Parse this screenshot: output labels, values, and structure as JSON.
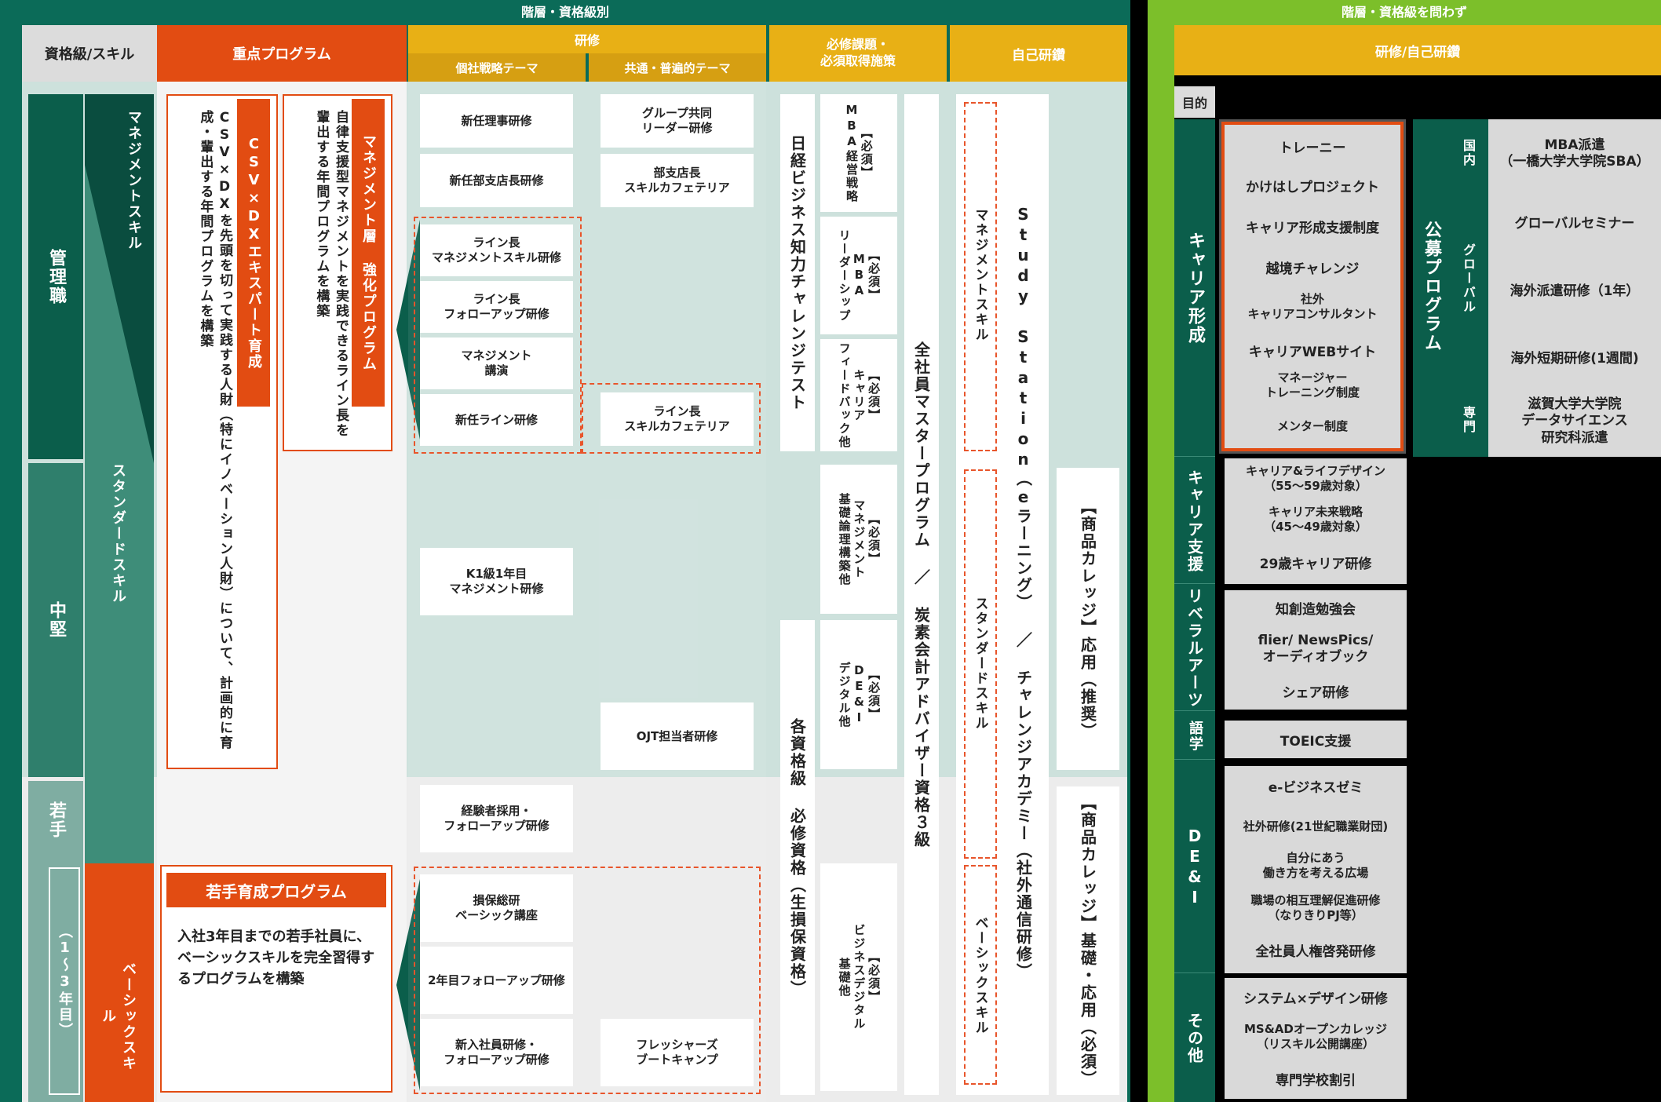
{
  "left_panel": {
    "banner": "階層・資格級別",
    "headers": {
      "level_skill": "資格級/スキル",
      "priority": "重点プログラム",
      "training": "研修",
      "individual_theme": "個社戦略テーマ",
      "common_theme": "共通・普遍的テーマ",
      "mandatory": "必修課題・\n必須取得施策",
      "self_study": "自己研鑽"
    },
    "levels": {
      "manager": "管理職",
      "mid": "中堅",
      "young": "若手",
      "young_sub": "（1〜3年目）"
    },
    "skills": {
      "management": "マネジメントスキル",
      "standard": "スタンダードスキル",
      "basic": "ベーシックスキル"
    },
    "priority_programs": {
      "mgmt_title": "マネジメント層 強化プログラム",
      "mgmt_desc": "自律支援型マネジメントを実践できるライン長を輩出する年間プログラムを構築",
      "csv_title": "CSV×DXエキスパート育成",
      "csv_desc": "CSV×DXを先頭を切って実践する人財（特にイノベーション人財）について、計画的に育成・輩出する年間プログラムを構築",
      "young_title": "若手育成プログラム",
      "young_desc": "入社3年目までの若手社員に、ベーシックスキルを完全習得するプログラムを構築"
    },
    "individual_trainings": [
      "新任理事研修",
      "新任部支店長研修",
      "ライン長\nマネジメントスキル研修",
      "ライン長\nフォローアップ研修",
      "マネジメント\n講演",
      "新任ライン研修",
      "K1級1年目\nマネジメント研修",
      "経験者採用・\nフォローアップ研修",
      "損保総研\nベーシック講座",
      "2年目フォローアップ研修",
      "新入社員研修・\nフォローアップ研修"
    ],
    "common_trainings": [
      "グループ共同\nリーダー研修",
      "部支店長\nスキルカフェテリア",
      "ライン長\nスキルカフェテリア",
      "OJT担当者研修",
      "フレッシャーズ\nブートキャンプ"
    ],
    "mandatory": {
      "nikkei": "日経ビジネス知力チャレンジテスト",
      "qualification": "各資格級 必修資格（生損保資格）",
      "items": [
        "【必須】\nMBA経営戦略",
        "【必須】\nMBA\nリーダーシップ",
        "【必須】\nキャリア\nフィードバック他",
        "【必須】\nマネジメント\n基礎論理構築他",
        "【必須】\nDE&I\nデジタル他",
        "【必須】\nビジネスデジタル\n基礎他"
      ],
      "master": "全社員マスタープログラム ／ 炭素会計アドバイザー資格３級"
    },
    "self_study": {
      "study_station": "Study Station（eラーニング） ／ チャレンジアカデミー（社外通信研修）",
      "mgmt_skill": "マネジメントスキル",
      "std_skill": "スタンダードスキル",
      "basic_skill": "ベーシックスキル",
      "college_applied": "【商品カレッジ】応用（推奨）",
      "college_basic": "【商品カレッジ】基礎・応用（必須）"
    }
  },
  "right_panel": {
    "banner": "階層・資格級を問わず",
    "header": "研修/自己研鑽",
    "purpose": "目的",
    "categories": {
      "career": "キャリア形成",
      "career_support": "キャリア支援",
      "liberal": "リベラルアーツ",
      "language": "語学",
      "dei": "DE&I",
      "other": "その他",
      "public": "公募プログラム"
    },
    "career_items": [
      "トレーニー",
      "かけはしプロジェクト",
      "キャリア形成支援制度",
      "越境チャレンジ",
      "社外\nキャリアコンサルタント",
      "キャリアWEBサイト",
      "マネージャー\nトレーニング制度",
      "メンター制度"
    ],
    "public_groups": {
      "domestic": "国内",
      "global": "グローバル",
      "specialist": "専門"
    },
    "public_items": [
      "MBA派遣\n（一橋大学大学院SBA）",
      "グローバルセミナー",
      "海外派遣研修（1年）",
      "海外短期研修(1週間)",
      "滋賀大学大学院\nデータサイエンス\n研究科派遣"
    ],
    "career_support_items": [
      "キャリア&ライフデザイン\n（55〜59歳対象）",
      "キャリア未来戦略\n（45〜49歳対象）",
      "29歳キャリア研修"
    ],
    "liberal_items": [
      "知創造勉強会",
      "flier/ NewsPics/\nオーディオブック",
      "シェア研修"
    ],
    "language_items": [
      "TOEIC支援"
    ],
    "dei_items": [
      "e-ビジネスゼミ",
      "社外研修(21世紀職業財団)",
      "自分にあう\n働き方を考える広場",
      "職場の相互理解促進研修\n（なりきりPJ等）",
      "全社員人権啓発研修"
    ],
    "other_items": [
      "システム×デザイン研修",
      "MS&ADオープンカレッジ\n（リスキル公開講座）",
      "専門学校割引"
    ]
  },
  "colors": {
    "dark_green": "#0b6b58",
    "orange": "#e24c12",
    "yellow": "#e8b015",
    "lime": "#7cbf2a"
  }
}
